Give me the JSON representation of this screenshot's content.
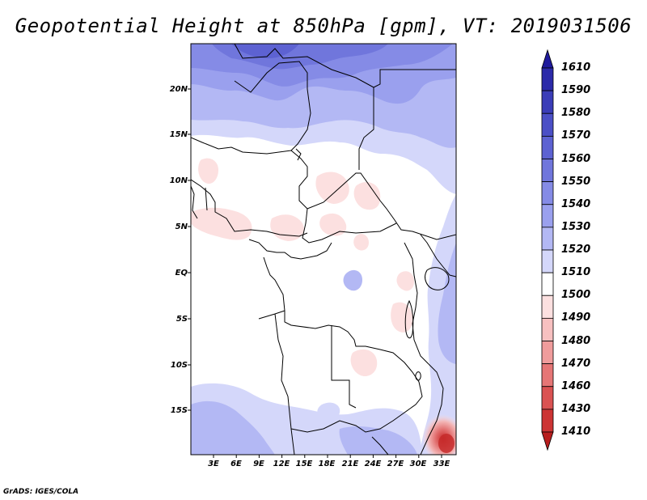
{
  "title": "Geopotential Height at 850hPa [gpm], VT: 2019031506",
  "credit": "GrADS: IGES/COLA",
  "map": {
    "region": "Central Africa",
    "lat_ticks": [
      "20N",
      "15N",
      "10N",
      "5N",
      "EQ",
      "5S",
      "10S",
      "15S"
    ],
    "lon_ticks": [
      "3E",
      "6E",
      "9E",
      "12E",
      "15E",
      "18E",
      "21E",
      "24E",
      "27E",
      "30E",
      "33E"
    ]
  },
  "colorbar": {
    "labels": [
      "1610",
      "1590",
      "1580",
      "1570",
      "1560",
      "1550",
      "1540",
      "1530",
      "1520",
      "1510",
      "1500",
      "1490",
      "1480",
      "1470",
      "1460",
      "1430",
      "1410"
    ],
    "colors": [
      "#1f1a9c",
      "#2c2aa9",
      "#3b3db8",
      "#4b4fc6",
      "#5d62d2",
      "#7076dc",
      "#858be6",
      "#9aa0ee",
      "#b3b8f4",
      "#d4d7fa",
      "#ffffff",
      "#fce0e0",
      "#f7c0c0",
      "#f09c9c",
      "#e67676",
      "#da5252",
      "#cc3434",
      "#b81e1e"
    ]
  }
}
